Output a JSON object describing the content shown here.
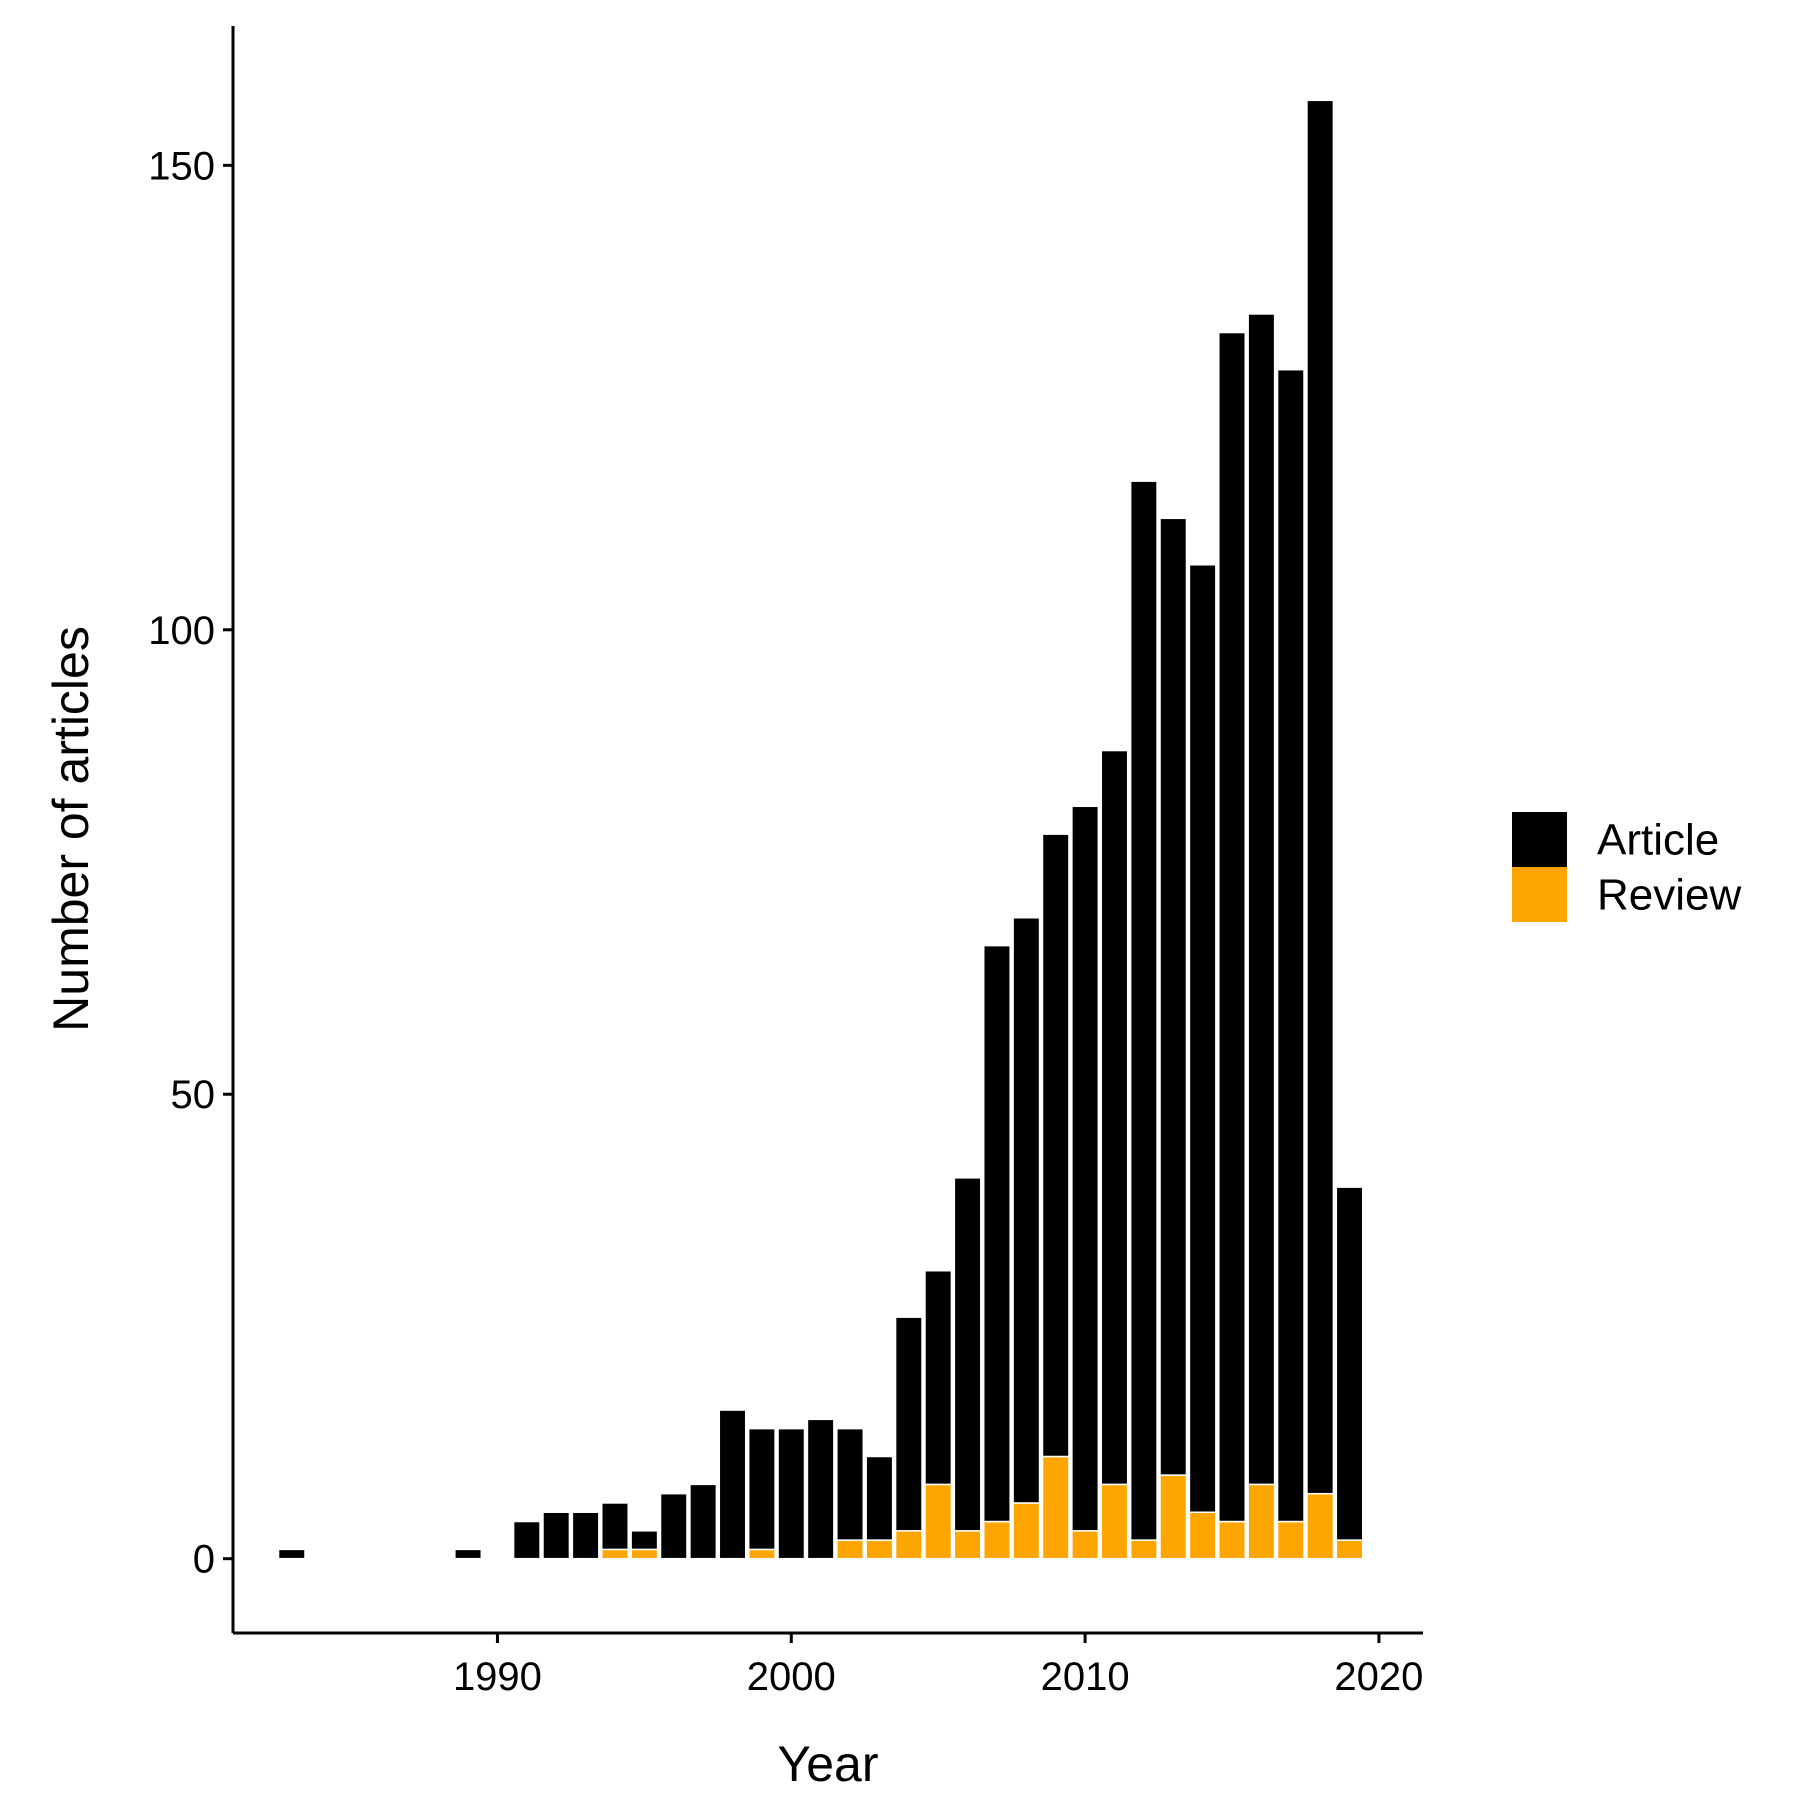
{
  "chart_data": {
    "type": "bar",
    "stacked": true,
    "xlabel": "Year",
    "ylabel": "Number of articles",
    "xlim": [
      1981,
      2021.5
    ],
    "ylim": [
      -8,
      165
    ],
    "xticks": [
      1990,
      2000,
      2010,
      2020
    ],
    "yticks": [
      0,
      50,
      100,
      150
    ],
    "grid": false,
    "legend_position": "right",
    "x": [
      1983,
      1989,
      1991,
      1992,
      1993,
      1994,
      1995,
      1996,
      1997,
      1998,
      1999,
      2000,
      2001,
      2002,
      2003,
      2004,
      2005,
      2006,
      2007,
      2008,
      2009,
      2010,
      2011,
      2012,
      2013,
      2014,
      2015,
      2016,
      2017,
      2018,
      2019
    ],
    "series": [
      {
        "name": "Article",
        "color": "#000000",
        "values": [
          1,
          1,
          4,
          5,
          5,
          5,
          2,
          7,
          8,
          16,
          13,
          14,
          15,
          12,
          9,
          23,
          23,
          38,
          62,
          63,
          67,
          78,
          79,
          114,
          103,
          102,
          128,
          126,
          124,
          150,
          38
        ]
      },
      {
        "name": "Review",
        "color": "#FFA500",
        "values": [
          0,
          0,
          0,
          0,
          0,
          1,
          1,
          0,
          0,
          0,
          1,
          0,
          0,
          2,
          2,
          3,
          8,
          3,
          4,
          6,
          11,
          3,
          8,
          2,
          9,
          5,
          4,
          8,
          4,
          7,
          2
        ]
      }
    ]
  }
}
